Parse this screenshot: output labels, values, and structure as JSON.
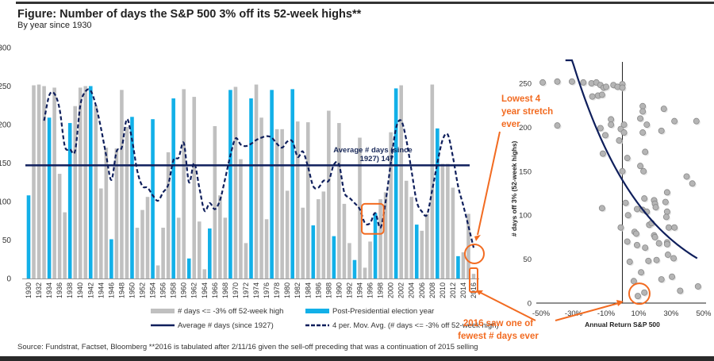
{
  "title": "Figure: Number of days the S&P 500 3% off its 52-week highs**",
  "subtitle": "By year since 1930",
  "source": "Source: Fundstrat, Factset, Bloomberg  **2016 is tabulated after 2/11/16 given the sell-off preceding that was a continuation of 2015 selling",
  "colors": {
    "gray_bar": "#c0c0c0",
    "blue_bar": "#12b0e8",
    "navy": "#0f1f5c",
    "orange": "#f26b21",
    "scatter_point": "#b5b5b5"
  },
  "chart_data": [
    {
      "type": "bar",
      "title": "Number of days the S&P 500 3% off its 52-week highs",
      "xlabel": "",
      "ylabel": "",
      "ylim": [
        0,
        300
      ],
      "yticks": [
        0,
        50,
        100,
        150,
        200,
        250,
        300
      ],
      "categories": [
        1930,
        1931,
        1932,
        1933,
        1934,
        1935,
        1936,
        1937,
        1938,
        1939,
        1940,
        1941,
        1942,
        1943,
        1944,
        1945,
        1946,
        1947,
        1948,
        1949,
        1950,
        1951,
        1952,
        1953,
        1954,
        1955,
        1956,
        1957,
        1958,
        1959,
        1960,
        1961,
        1962,
        1963,
        1964,
        1965,
        1966,
        1967,
        1968,
        1969,
        1970,
        1971,
        1972,
        1973,
        1974,
        1975,
        1976,
        1977,
        1978,
        1979,
        1980,
        1981,
        1982,
        1983,
        1984,
        1985,
        1986,
        1987,
        1988,
        1989,
        1990,
        1991,
        1992,
        1993,
        1994,
        1995,
        1996,
        1997,
        1998,
        1999,
        2000,
        2001,
        2002,
        2003,
        2004,
        2005,
        2006,
        2007,
        2008,
        2009,
        2010,
        2011,
        2012,
        2013,
        2014,
        2015,
        2016
      ],
      "xtick_labels": [
        "1930",
        "1932",
        "1934",
        "1936",
        "1938",
        "1940",
        "1942",
        "1944",
        "1946",
        "1948",
        "1950",
        "1952",
        "1954",
        "1956",
        "1958",
        "1960",
        "1962",
        "1964",
        "1966",
        "1968",
        "1970",
        "1972",
        "1974",
        "1976",
        "1978",
        "1980",
        "1982",
        "1984",
        "1986",
        "1988",
        "1990",
        "1992",
        "1994",
        "1996",
        "1998",
        "2000",
        "2002",
        "2004",
        "2006",
        "2008",
        "2010",
        "2012",
        "2014",
        "2016"
      ],
      "series": [
        {
          "name": "# days <= -3% off 52-week high",
          "type": "bar",
          "values": [
            108,
            251,
            252,
            250,
            209,
            248,
            136,
            86,
            202,
            224,
            248,
            250,
            250,
            225,
            117,
            170,
            51,
            169,
            245,
            197,
            210,
            66,
            89,
            106,
            207,
            17,
            66,
            164,
            234,
            79,
            246,
            26,
            236,
            74,
            12,
            65,
            198,
            108,
            79,
            245,
            249,
            155,
            46,
            234,
            252,
            209,
            77,
            245,
            194,
            194,
            114,
            246,
            204,
            92,
            203,
            69,
            103,
            113,
            218,
            55,
            202,
            97,
            46,
            24,
            183,
            14,
            48,
            85,
            103,
            112,
            190,
            247,
            251,
            127,
            106,
            70,
            62,
            84,
            252,
            195,
            149,
            149,
            118,
            29,
            34,
            84,
            6
          ]
        },
        {
          "name": "Post-Presidential election year",
          "type": "bar-highlight",
          "years": [
            1930,
            1934,
            1938,
            1942,
            1946,
            1950,
            1954,
            1958,
            1961,
            1965,
            1969,
            1973,
            1977,
            1981,
            1985,
            1989,
            1993,
            1997,
            2001,
            2005,
            2009,
            2013
          ]
        },
        {
          "name": "Average # days (since 1927)",
          "type": "hline",
          "value": 147
        },
        {
          "name": "4 per. Mov. Avg. (# days <= -3% off 52-week high)",
          "type": "line-dashed",
          "start_year": 1933,
          "values": [
            205,
            238,
            240,
            220,
            172,
            168,
            166,
            225,
            243,
            244,
            225,
            195,
            160,
            128,
            165,
            170,
            207,
            180,
            140,
            120,
            118,
            108,
            101,
            112,
            122,
            154,
            157,
            176,
            125,
            150,
            118,
            88,
            98,
            90,
            102,
            130,
            160,
            182,
            174,
            172,
            175,
            180,
            183,
            185,
            183,
            175,
            170,
            178,
            178,
            158,
            165,
            145,
            120,
            118,
            127,
            127,
            148,
            148,
            112,
            105,
            98,
            90,
            72,
            72,
            85,
            66,
            100,
            150,
            195,
            205,
            180,
            140,
            100,
            87,
            83,
            115,
            150,
            180,
            187,
            158,
            120,
            95,
            68,
            40
          ]
        }
      ],
      "annotations": {
        "average_label_line1": "Average # days (since",
        "average_label_line2": "1927) 147",
        "highlight_box_years": [
          1995,
          1998
        ]
      },
      "legend": {
        "placement": "bottom",
        "items": [
          {
            "label": "# days <= -3% off 52-week high",
            "style": "gray-bar"
          },
          {
            "label": "Post-Presidential election year",
            "style": "blue-bar"
          },
          {
            "label": "Average # days (since 1927)",
            "style": "navy-line"
          },
          {
            "label": "4 per. Mov. Avg. (# days <= -3% off 52-week high)",
            "style": "navy-dashed"
          }
        ]
      },
      "grid": false
    },
    {
      "type": "scatter",
      "title": "",
      "xlabel": "Annual Return S&P 500",
      "ylabel": "# days off 3% (52-week highs)",
      "xlim": [
        -50,
        50
      ],
      "ylim": [
        0,
        260
      ],
      "xtick_labels": [
        "-50%",
        "-30%",
        "-10%",
        "10%",
        "30%",
        "50%"
      ],
      "xticks": [
        -50,
        -30,
        -10,
        10,
        30,
        50
      ],
      "yticks": [
        0,
        50,
        100,
        150,
        200,
        250
      ],
      "points": [
        [
          -49,
          251
        ],
        [
          -40,
          252
        ],
        [
          -31,
          252
        ],
        [
          -24,
          251
        ],
        [
          -19,
          250
        ],
        [
          -16,
          251
        ],
        [
          -13.5,
          248
        ],
        [
          -11.5,
          245
        ],
        [
          -10,
          246
        ],
        [
          -5.5,
          248
        ],
        [
          -3,
          246
        ],
        [
          0,
          249
        ],
        [
          0,
          245
        ],
        [
          -18.5,
          235
        ],
        [
          -15,
          236
        ],
        [
          -12.5,
          237
        ],
        [
          -40,
          202
        ],
        [
          -7,
          209
        ],
        [
          -7,
          203
        ],
        [
          -13.5,
          199
        ],
        [
          -10.5,
          191
        ],
        [
          -2,
          185
        ],
        [
          -1,
          198
        ],
        [
          1,
          194
        ],
        [
          1,
          203
        ],
        [
          -12,
          170
        ],
        [
          3,
          165
        ],
        [
          0,
          150
        ],
        [
          12.5,
          224
        ],
        [
          12.5,
          218
        ],
        [
          11,
          210
        ],
        [
          15,
          203
        ],
        [
          12.5,
          194
        ],
        [
          25.5,
          221
        ],
        [
          32,
          207
        ],
        [
          45.5,
          207
        ],
        [
          24,
          196
        ],
        [
          14,
          172
        ],
        [
          11,
          156
        ],
        [
          13,
          150
        ],
        [
          39.5,
          144
        ],
        [
          43,
          136
        ],
        [
          -12.5,
          108
        ],
        [
          2,
          114
        ],
        [
          13.5,
          119
        ],
        [
          19.5,
          117
        ],
        [
          20,
          113
        ],
        [
          20.5,
          109
        ],
        [
          26.5,
          115
        ],
        [
          27.5,
          126
        ],
        [
          9,
          107
        ],
        [
          12.5,
          106
        ],
        [
          15,
          104
        ],
        [
          3.5,
          100
        ],
        [
          27.5,
          104
        ],
        [
          27,
          98
        ],
        [
          16.5,
          89
        ],
        [
          18,
          91
        ],
        [
          28.5,
          86
        ],
        [
          32,
          86
        ],
        [
          -1,
          86
        ],
        [
          7.5,
          81
        ],
        [
          8.5,
          79
        ],
        [
          19.5,
          77
        ],
        [
          20,
          75
        ],
        [
          3,
          70
        ],
        [
          22.5,
          68
        ],
        [
          27.5,
          69
        ],
        [
          27.5,
          67
        ],
        [
          9,
          66
        ],
        [
          14,
          63
        ],
        [
          28,
          55
        ],
        [
          31.5,
          51
        ],
        [
          4.5,
          47
        ],
        [
          16,
          48
        ],
        [
          21,
          49
        ],
        [
          11.5,
          35
        ],
        [
          7,
          25
        ],
        [
          24,
          27
        ],
        [
          30.5,
          30
        ],
        [
          35.5,
          14
        ],
        [
          46.5,
          19
        ],
        [
          13.5,
          12
        ],
        [
          9.5,
          8
        ]
      ],
      "trendline": {
        "type": "exponential",
        "a": 140,
        "b": -0.022,
        "x_range": [
          -35,
          46
        ]
      },
      "highlight_point": [
        9.5,
        8
      ]
    }
  ],
  "callouts": {
    "lowest_stretch": [
      "Lowest 4",
      "year stretch",
      "ever"
    ],
    "fewest_days": [
      "2016 saw one of",
      "fewest # days ever"
    ]
  }
}
